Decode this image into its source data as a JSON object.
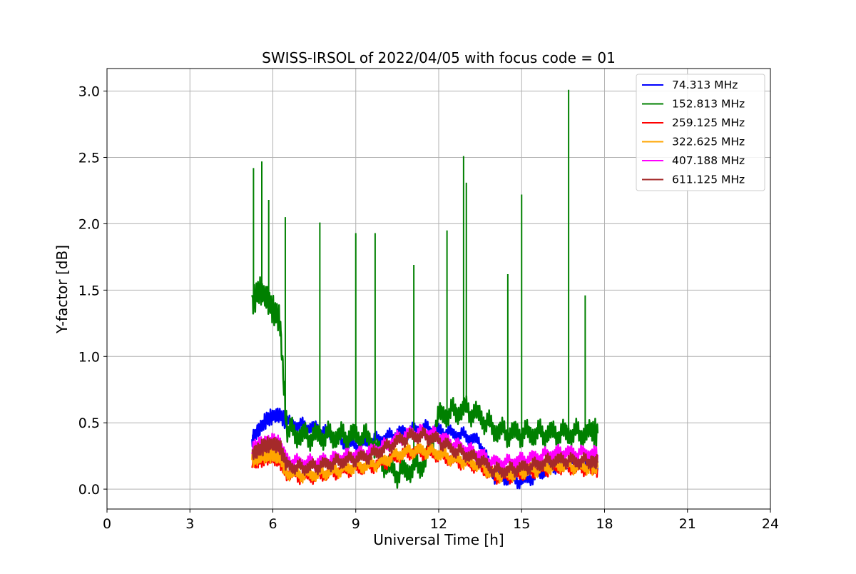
{
  "chart_data": {
    "type": "line",
    "title": "SWISS-IRSOL of 2022/04/05 with focus code = 01",
    "xlabel": "Universal Time [h]",
    "ylabel": "Y-factor [dB]",
    "xlim": [
      0,
      24
    ],
    "ylim": [
      -0.15,
      3.17
    ],
    "xticks": [
      0,
      3,
      6,
      9,
      12,
      15,
      18,
      21,
      24
    ],
    "yticks": [
      0.0,
      0.5,
      1.0,
      1.5,
      2.0,
      2.5,
      3.0
    ],
    "xtick_labels": [
      "0",
      "3",
      "6",
      "9",
      "12",
      "15",
      "18",
      "21",
      "24"
    ],
    "ytick_labels": [
      "0.0",
      "0.5",
      "1.0",
      "1.5",
      "2.0",
      "2.5",
      "3.0"
    ],
    "grid": true,
    "legend_position": "top-right",
    "series": [
      {
        "name": "74.313 MHz",
        "color": "#0000ff",
        "x": [
          5.25,
          5.5,
          5.75,
          6.0,
          6.25,
          6.5,
          7.0,
          7.5,
          8.0,
          8.5,
          9.0,
          9.5,
          10.0,
          10.5,
          11.0,
          11.5,
          12.0,
          12.5,
          13.0,
          13.5,
          14.0,
          14.5,
          15.0,
          15.5,
          16.0,
          16.5,
          17.0,
          17.5,
          17.75
        ],
        "y": [
          0.38,
          0.45,
          0.52,
          0.55,
          0.56,
          0.5,
          0.48,
          0.46,
          0.42,
          0.36,
          0.33,
          0.36,
          0.38,
          0.42,
          0.44,
          0.46,
          0.44,
          0.42,
          0.4,
          0.35,
          0.1,
          0.08,
          0.06,
          0.1,
          0.16,
          0.2,
          0.2,
          0.19,
          0.18
        ]
      },
      {
        "name": "152.813 MHz",
        "color": "#008000",
        "x": [
          5.25,
          5.5,
          5.75,
          6.0,
          6.25,
          6.5,
          7.0,
          7.5,
          8.0,
          8.5,
          9.0,
          9.5,
          10.0,
          10.5,
          11.0,
          11.5,
          12.0,
          12.5,
          13.0,
          13.5,
          14.0,
          14.5,
          15.0,
          15.5,
          16.0,
          16.5,
          17.0,
          17.5,
          17.75
        ],
        "y": [
          1.4,
          1.5,
          1.45,
          1.35,
          1.28,
          0.45,
          0.4,
          0.4,
          0.4,
          0.4,
          0.4,
          0.38,
          0.2,
          0.12,
          0.15,
          0.2,
          0.55,
          0.58,
          0.6,
          0.55,
          0.45,
          0.42,
          0.42,
          0.42,
          0.42,
          0.42,
          0.42,
          0.42,
          0.42
        ],
        "spikes": [
          [
            5.3,
            2.42
          ],
          [
            5.6,
            2.47
          ],
          [
            5.85,
            2.18
          ],
          [
            6.45,
            2.05
          ],
          [
            7.7,
            2.01
          ],
          [
            9.0,
            1.93
          ],
          [
            9.7,
            1.93
          ],
          [
            11.1,
            1.69
          ],
          [
            12.3,
            1.95
          ],
          [
            12.9,
            2.51
          ],
          [
            13.0,
            2.31
          ],
          [
            14.5,
            1.62
          ],
          [
            15.0,
            2.22
          ],
          [
            16.7,
            3.01
          ],
          [
            17.3,
            1.46
          ]
        ]
      },
      {
        "name": "259.125 MHz",
        "color": "#ff0000",
        "x": [
          5.25,
          5.5,
          5.75,
          6.0,
          6.25,
          6.5,
          7.0,
          7.5,
          8.0,
          8.5,
          9.0,
          9.5,
          10.0,
          10.5,
          11.0,
          11.5,
          12.0,
          12.5,
          13.0,
          13.5,
          14.0,
          14.5,
          15.0,
          15.5,
          16.0,
          16.5,
          17.0,
          17.5,
          17.75
        ],
        "y": [
          0.2,
          0.22,
          0.24,
          0.24,
          0.22,
          0.12,
          0.1,
          0.1,
          0.12,
          0.14,
          0.16,
          0.17,
          0.2,
          0.25,
          0.28,
          0.28,
          0.26,
          0.22,
          0.2,
          0.17,
          0.1,
          0.1,
          0.12,
          0.14,
          0.16,
          0.17,
          0.16,
          0.16,
          0.15
        ]
      },
      {
        "name": "322.625 MHz",
        "color": "#ffa500",
        "x": [
          5.25,
          5.5,
          5.75,
          6.0,
          6.25,
          6.5,
          7.0,
          7.5,
          8.0,
          8.5,
          9.0,
          9.5,
          10.0,
          10.5,
          11.0,
          11.5,
          12.0,
          12.5,
          13.0,
          13.5,
          14.0,
          14.5,
          15.0,
          15.5,
          16.0,
          16.5,
          17.0,
          17.5,
          17.75
        ],
        "y": [
          0.22,
          0.24,
          0.26,
          0.26,
          0.24,
          0.13,
          0.11,
          0.11,
          0.13,
          0.15,
          0.17,
          0.18,
          0.21,
          0.26,
          0.29,
          0.29,
          0.27,
          0.23,
          0.21,
          0.18,
          0.11,
          0.11,
          0.13,
          0.15,
          0.17,
          0.18,
          0.17,
          0.17,
          0.16
        ]
      },
      {
        "name": "407.188 MHz",
        "color": "#ff00ff",
        "x": [
          5.25,
          5.5,
          5.75,
          6.0,
          6.25,
          6.5,
          7.0,
          7.5,
          8.0,
          8.5,
          9.0,
          9.5,
          10.0,
          10.5,
          11.0,
          11.5,
          12.0,
          12.5,
          13.0,
          13.5,
          14.0,
          14.5,
          15.0,
          15.5,
          16.0,
          16.5,
          17.0,
          17.5,
          17.75
        ],
        "y": [
          0.3,
          0.33,
          0.35,
          0.36,
          0.34,
          0.22,
          0.2,
          0.2,
          0.22,
          0.24,
          0.26,
          0.28,
          0.32,
          0.38,
          0.42,
          0.43,
          0.4,
          0.34,
          0.3,
          0.26,
          0.2,
          0.2,
          0.22,
          0.24,
          0.26,
          0.28,
          0.27,
          0.27,
          0.26
        ]
      },
      {
        "name": "611.125 MHz",
        "color": "#a52a2a",
        "x": [
          5.25,
          5.5,
          5.75,
          6.0,
          6.25,
          6.5,
          7.0,
          7.5,
          8.0,
          8.5,
          9.0,
          9.5,
          10.0,
          10.5,
          11.0,
          11.5,
          12.0,
          12.5,
          13.0,
          13.5,
          14.0,
          14.5,
          15.0,
          15.5,
          16.0,
          16.5,
          17.0,
          17.5,
          17.75
        ],
        "y": [
          0.26,
          0.3,
          0.33,
          0.34,
          0.32,
          0.18,
          0.16,
          0.17,
          0.19,
          0.21,
          0.23,
          0.25,
          0.3,
          0.36,
          0.4,
          0.4,
          0.37,
          0.3,
          0.26,
          0.22,
          0.14,
          0.14,
          0.16,
          0.18,
          0.21,
          0.22,
          0.21,
          0.21,
          0.2
        ]
      }
    ]
  }
}
